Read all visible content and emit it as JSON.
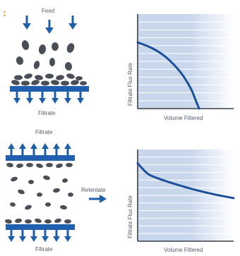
{
  "colors": {
    "accent_orange": "#e07a10",
    "arrow_blue": "#1d5fa8",
    "membrane_blue": "#1f5fae",
    "particle_dark": "#4a4f57",
    "chart_curve": "#1a4f9a",
    "chart_fill_left": "#c9d7ec",
    "chart_fill_right": "#ffffff",
    "chart_grid": "#ffffff",
    "chart_axis": "#3a3f46"
  },
  "corner_mark": ":",
  "top_panel": {
    "feed_label": "Feed",
    "filtrate_label": "Filtrate"
  },
  "bottom_panel": {
    "filtrate_top_label": "Filtrate",
    "retentate_label": "Retentate",
    "filtrate_bottom_label": "Filtrate"
  },
  "chart_data": [
    {
      "type": "line",
      "title": "",
      "xlabel": "Volume Filtered",
      "ylabel": "Filtrate Flux Rate",
      "grid": true,
      "series": [
        {
          "x": [
            0.0,
            0.15,
            0.3,
            0.45,
            0.55,
            0.6,
            0.64
          ],
          "y": [
            0.7,
            0.64,
            0.54,
            0.38,
            0.22,
            0.1,
            0.0
          ]
        }
      ]
    },
    {
      "type": "line",
      "title": "",
      "xlabel": "Volume Filtered",
      "ylabel": "Filtrate Flux Rate",
      "grid": true,
      "series": [
        {
          "x": [
            0.0,
            0.1,
            0.2,
            0.4,
            0.6,
            0.8,
            1.0
          ],
          "y": [
            0.85,
            0.74,
            0.69,
            0.62,
            0.56,
            0.51,
            0.47
          ]
        }
      ]
    }
  ]
}
